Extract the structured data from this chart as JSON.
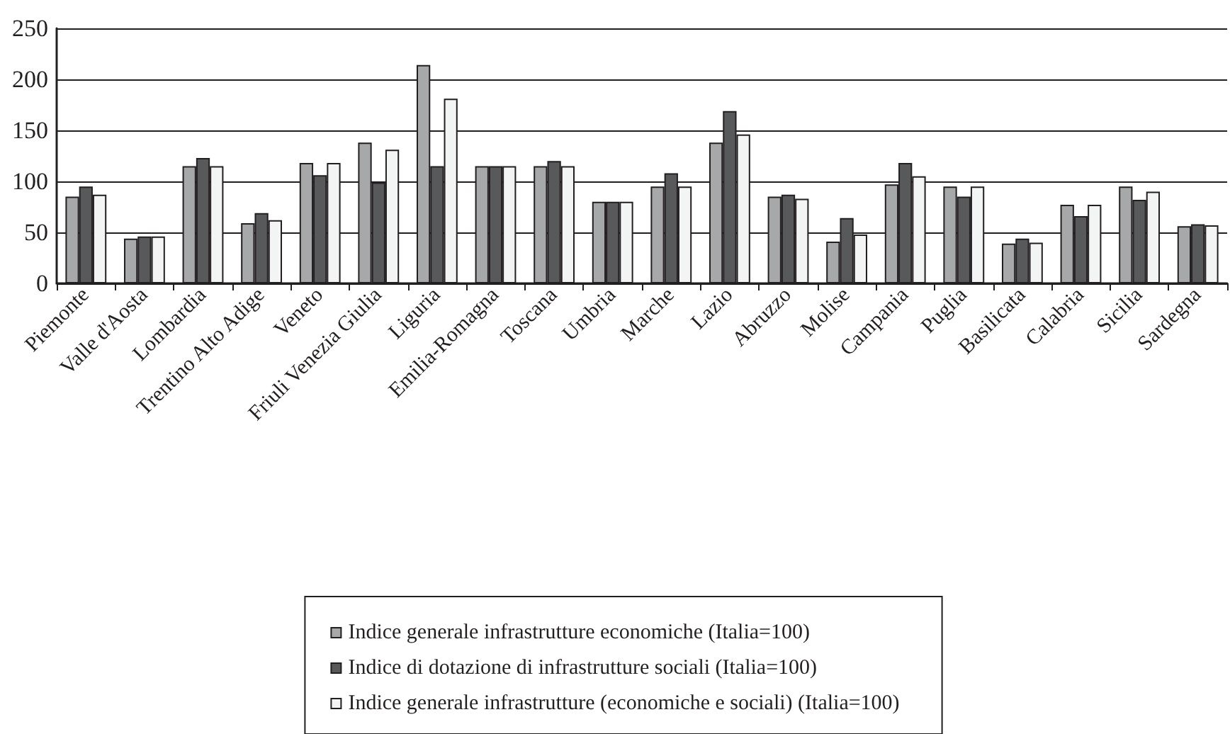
{
  "chart_data": {
    "type": "bar",
    "categories": [
      "Piemonte",
      "Valle d'Aosta",
      "Lombardia",
      "Trentino Alto Adige",
      "Veneto",
      "Friuli Venezia Giulia",
      "Liguria",
      "Emilia-Romagna",
      "Toscana",
      "Umbria",
      "Marche",
      "Lazio",
      "Abruzzo",
      "Molise",
      "Campania",
      "Puglia",
      "Basilicata",
      "Calabria",
      "Sicilia",
      "Sardegna"
    ],
    "series": [
      {
        "name": "Indice generale infrastrutture economiche (Italia=100)",
        "color": "#a6a8aa",
        "values": [
          85,
          44,
          115,
          59,
          118,
          138,
          214,
          115,
          115,
          80,
          95,
          138,
          85,
          41,
          97,
          95,
          39,
          77,
          95,
          56
        ]
      },
      {
        "name": "Indice di dotazione di infrastrutture sociali (Italia=100)",
        "color": "#58595b",
        "values": [
          95,
          46,
          123,
          69,
          106,
          99,
          115,
          115,
          120,
          80,
          108,
          169,
          87,
          64,
          118,
          85,
          44,
          66,
          82,
          58
        ]
      },
      {
        "name": "Indice generale infrastrutture (economiche e sociali) (Italia=100)",
        "color": "#f3f4f4",
        "values": [
          87,
          46,
          115,
          62,
          118,
          131,
          181,
          115,
          115,
          80,
          95,
          146,
          83,
          48,
          105,
          95,
          40,
          77,
          90,
          57
        ]
      }
    ],
    "ylim": [
      0,
      250
    ],
    "yticks": [
      0,
      50,
      100,
      150,
      200,
      250
    ],
    "grid": "y",
    "legend": "bottom"
  }
}
